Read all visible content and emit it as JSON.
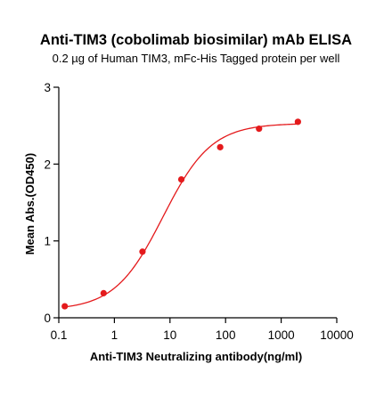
{
  "chart_data": {
    "type": "scatter",
    "title": "Anti-TIM3 (cobolimab biosimilar) mAb ELISA",
    "subtitle": "0.2 µg of Human TIM3, mFc-His Tagged protein per well",
    "xlabel": "Anti-TIM3 Neutralizing antibody(ng/ml)",
    "ylabel": "Mean Abs.(OD450)",
    "x_scale": "log",
    "xlim": [
      0.1,
      10000
    ],
    "ylim": [
      0,
      3
    ],
    "x_ticks": [
      0.1,
      1,
      10,
      100,
      1000,
      10000
    ],
    "x_tick_labels": [
      "0.1",
      "1",
      "10",
      "100",
      "1000",
      "10000"
    ],
    "y_ticks": [
      0,
      1,
      2,
      3
    ],
    "y_tick_labels": [
      "0",
      "1",
      "2",
      "3"
    ],
    "grid": false,
    "color": "#e41a1c",
    "series": [
      {
        "x": [
          0.128,
          0.64,
          3.2,
          16,
          80,
          400,
          2000
        ],
        "y": [
          0.15,
          0.32,
          0.86,
          1.8,
          2.22,
          2.46,
          2.55
        ]
      }
    ],
    "fit_curve": {
      "model": "4PL",
      "bottom": 0.1,
      "top": 2.53,
      "ec50": 7.5,
      "hill": 1.0
    }
  }
}
